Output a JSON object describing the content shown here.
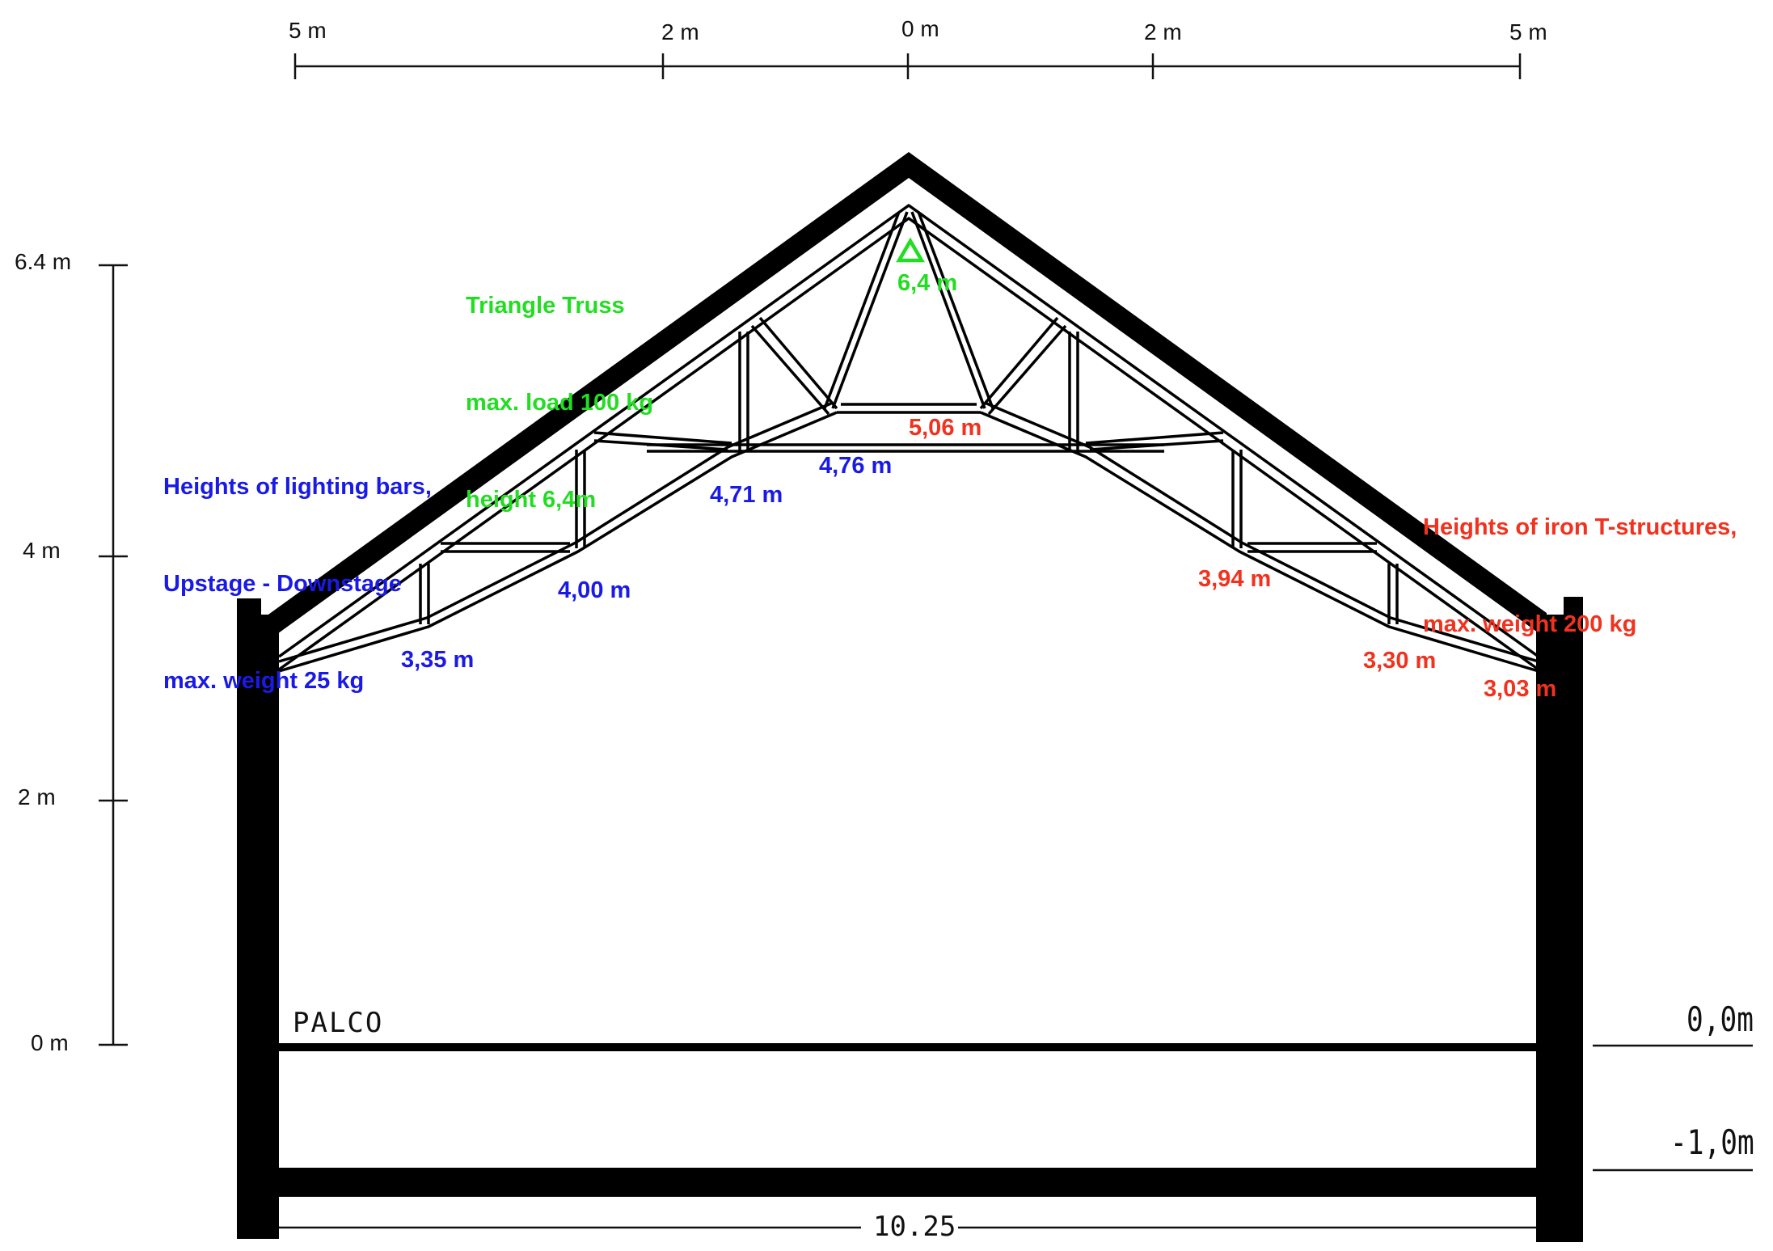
{
  "scale_top": {
    "ticks": [
      {
        "label": "5 m"
      },
      {
        "label": "2 m"
      },
      {
        "label": "0 m"
      },
      {
        "label": "2 m"
      },
      {
        "label": "5 m"
      }
    ]
  },
  "scale_left": {
    "ticks": [
      {
        "label": "6.4 m"
      },
      {
        "label": "4 m"
      },
      {
        "label": "2 m"
      },
      {
        "label": "0 m"
      }
    ]
  },
  "legend_blue": {
    "line1": "Heights of lighting bars,",
    "line2": "Upstage - Downstage",
    "line3": "max. weight 25 kg",
    "color": "#1a1ae6"
  },
  "legend_red": {
    "line1": "Heights of iron T-structures,",
    "line2": "max. weight 200 kg",
    "color": "#f0321e"
  },
  "legend_green": {
    "line1": "Triangle Truss",
    "line2": "max. load 100 kg",
    "line3": "height 6,4m",
    "color": "#22dd22"
  },
  "heights_blue": [
    "3,35 m",
    "4,00 m",
    "4,71 m",
    "4,76 m"
  ],
  "heights_red": [
    "5,06 m",
    "3,94 m",
    "3,30 m",
    "3,03 m"
  ],
  "height_green": "6,4 m",
  "stage_label": "PALCO",
  "level_0": "0,0m",
  "level_minus1": "-1,0m",
  "width_label": "10.25",
  "truss_icon": "triangle-icon"
}
